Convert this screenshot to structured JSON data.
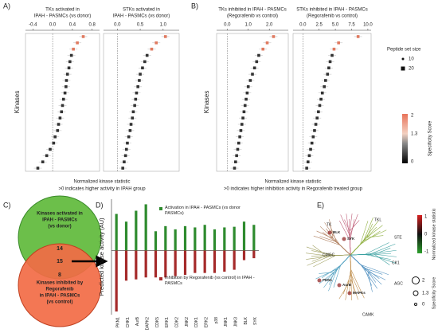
{
  "panels": [
    "A)",
    "B)",
    "C)",
    "D)",
    "E)"
  ],
  "axis_text": {
    "kinases": "Kinases",
    "a_footer": [
      "Normalized kinase statistic",
      ">0 indicates higher activity in IPAH group"
    ],
    "b_footer": [
      "Normalized kinase statistic",
      ">0 indicates higher inhibition activity in Regorafenib treated group"
    ]
  },
  "legend_ab": {
    "size_title": "Peptide set size",
    "sizes": [
      10,
      20
    ],
    "score_title": "Specificity Score",
    "score_ticks": [
      2,
      1.3,
      0
    ]
  },
  "chart_data": [
    {
      "type": "dot",
      "title": [
        "TKs activated in",
        "IPAH - PASMCs (vs donor)"
      ],
      "color": "#333333",
      "categories": [
        null,
        null,
        null,
        null,
        null,
        null,
        null,
        null,
        null,
        null,
        null,
        null,
        null,
        null,
        null,
        null,
        null,
        null,
        null,
        null,
        null,
        null
      ],
      "values": [
        0.62,
        0.5,
        0.42,
        0.38,
        0.35,
        0.33,
        0.3,
        0.28,
        0.27,
        0.25,
        0.22,
        0.2,
        0.18,
        0.15,
        0.12,
        0.1,
        0.05,
        0.02,
        -0.05,
        -0.12,
        -0.2,
        -0.3
      ],
      "xlim": [
        -0.55,
        0.95
      ],
      "xticks": [
        -0.4,
        {
          "value": 0,
          "label": "0.0"
        },
        0.4,
        0.8
      ]
    },
    {
      "type": "dot",
      "title": [
        "STKs activated in",
        "IPAH - PASMCs (vs donor)"
      ],
      "color": "#333333",
      "categories": [
        null,
        null,
        null,
        null,
        null,
        null,
        null,
        null,
        null,
        null,
        null,
        null,
        null,
        null,
        null,
        null,
        null,
        null,
        null,
        null,
        null,
        null
      ],
      "values": [
        1.05,
        0.85,
        0.75,
        0.65,
        0.6,
        0.55,
        0.5,
        0.48,
        0.45,
        0.42,
        0.4,
        0.38,
        0.35,
        0.33,
        0.3,
        0.28,
        0.25,
        0.22,
        0.2,
        0.18,
        0.15,
        0.12
      ],
      "xlim": [
        -0.3,
        1.35
      ],
      "xticks": [
        {
          "value": 0,
          "label": "0.0"
        },
        0.5,
        {
          "value": 1,
          "label": "1.0"
        }
      ]
    },
    {
      "type": "dot",
      "title": [
        "TKs inhibited in IPAH - PASMCs",
        "(Regorafenib vs control)"
      ],
      "color": "#333333",
      "categories": [
        null,
        null,
        null,
        null,
        null,
        null,
        null,
        null,
        null,
        null,
        null,
        null,
        null,
        null,
        null,
        null,
        null,
        null,
        null,
        null,
        null,
        null
      ],
      "values": [
        2.2,
        1.9,
        1.7,
        1.5,
        1.4,
        1.3,
        1.2,
        1.1,
        1.0,
        0.95,
        0.9,
        0.85,
        0.8,
        0.75,
        0.7,
        0.65,
        0.6,
        0.55,
        0.5,
        0.45,
        0.4,
        0.35
      ],
      "xlim": [
        -0.5,
        2.9
      ],
      "xticks": [
        {
          "value": 0,
          "label": "0.0"
        },
        {
          "value": 1,
          "label": "1.0"
        },
        {
          "value": 2,
          "label": "2.0"
        }
      ]
    },
    {
      "type": "dot",
      "title": [
        "STKs inhibited in IPAH - PASMCs",
        "(Regorafenib vs control)"
      ],
      "color": "#333333",
      "categories": [
        null,
        null,
        null,
        null,
        null,
        null,
        null,
        null,
        null,
        null,
        null,
        null,
        null,
        null,
        null,
        null,
        null,
        null,
        null,
        null,
        null,
        null
      ],
      "values": [
        8.5,
        5.5,
        4.8,
        4.5,
        4.2,
        4.0,
        3.8,
        3.5,
        3.3,
        3.0,
        2.8,
        2.6,
        2.4,
        2.2,
        2.0,
        1.8,
        1.6,
        1.4,
        1.2,
        1.0,
        0.8,
        0.6
      ],
      "xlim": [
        -1.5,
        10.5
      ],
      "xticks": [
        {
          "value": 0,
          "label": "0.0"
        },
        2.5,
        {
          "value": 5,
          "label": "5.0"
        },
        7.5,
        {
          "value": 10,
          "label": "10.0"
        }
      ]
    },
    {
      "type": "bar",
      "y_label": "Predicted kinase activity (AU)",
      "categories": [
        "PKN1",
        "CHK1",
        "AurB",
        "DAPK2",
        "CDK5",
        "ERK1",
        "CDK2",
        "JNK2",
        "CDK1",
        "ERK2",
        "p38",
        "JNK1",
        "JNK3",
        "BLK",
        "SYK"
      ],
      "series": [
        {
          "name": "Activation in IPAH - PASMCs (vs donor PASMCs)",
          "color": "#2e8b2e",
          "values": [
            0.57,
            0.45,
            0.62,
            0.72,
            0.3,
            0.38,
            0.33,
            0.38,
            0.36,
            0.4,
            0.33,
            0.36,
            0.37,
            0.45,
            0.4
          ]
        },
        {
          "name": "Inhibition by Regorafenib (vs control) in IPAH - PASMCs",
          "color": "#a52a2a",
          "values": [
            -0.95,
            -0.47,
            -0.45,
            -0.42,
            -0.42,
            -0.42,
            -0.4,
            -0.38,
            -0.35,
            -0.35,
            -0.35,
            -0.33,
            -0.3,
            -0.15,
            -0.12
          ]
        }
      ],
      "ylim": [
        -1.0,
        0.8
      ]
    }
  ],
  "venn": {
    "left_label": [
      "Kinases activated in",
      "IPAH - PASMCs",
      "(vs donor)"
    ],
    "left_count": 14,
    "overlap": 15,
    "right_count": 8,
    "right_label": [
      "Kinases inhibited by",
      "Regorafenib",
      "in IPAH - PASMCs",
      "(vs control)"
    ]
  },
  "kinome": {
    "groups": [
      "TK",
      "TKL",
      "STE",
      "CK1",
      "AGC",
      "CAMK",
      "CMGC"
    ],
    "nodes": [
      "BLK",
      "SYK",
      "PKN1",
      "AurB",
      "MAPKs"
    ],
    "stat_title": "Normalized kinase statistic",
    "stat_ticks": [
      1,
      0,
      -1
    ],
    "score_title": "Specificity Score",
    "score_ticks": [
      2,
      1.3,
      0
    ]
  }
}
